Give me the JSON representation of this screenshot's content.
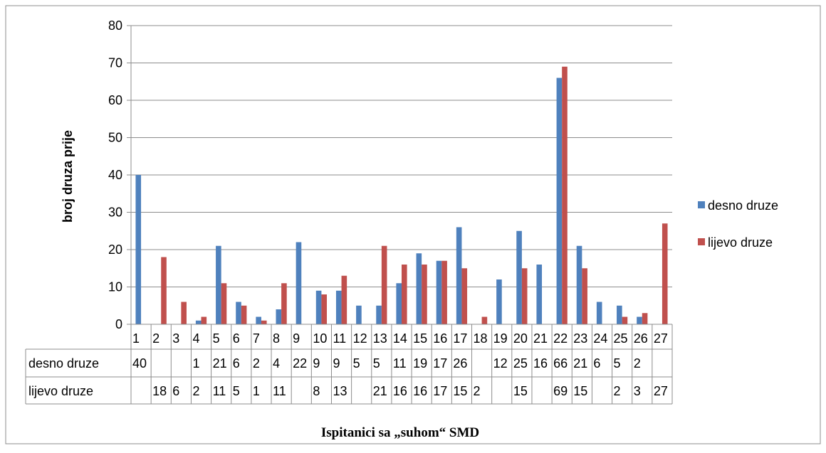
{
  "chart_data": {
    "type": "bar",
    "title": "",
    "xlabel": "Ispitanici sa „suhom“ SMD",
    "ylabel": "broj druza prije",
    "ylim": [
      0,
      80
    ],
    "yticks": [
      0,
      10,
      20,
      30,
      40,
      50,
      60,
      70,
      80
    ],
    "grid": true,
    "legend_position": "right",
    "has_data_table": true,
    "categories": [
      "1",
      "2",
      "3",
      "4",
      "5",
      "6",
      "7",
      "8",
      "9",
      "10",
      "11",
      "12",
      "13",
      "14",
      "15",
      "16",
      "17",
      "18",
      "19",
      "20",
      "21",
      "22",
      "23",
      "24",
      "25",
      "26",
      "27"
    ],
    "series": [
      {
        "name": "desno druze",
        "color": "#4f81bd",
        "values": [
          40,
          null,
          null,
          1,
          21,
          6,
          2,
          4,
          22,
          9,
          9,
          5,
          5,
          11,
          19,
          17,
          26,
          null,
          12,
          25,
          16,
          66,
          21,
          6,
          5,
          2,
          null
        ]
      },
      {
        "name": "lijevo druze",
        "color": "#c0504d",
        "values": [
          null,
          18,
          6,
          2,
          11,
          5,
          1,
          11,
          null,
          8,
          13,
          null,
          21,
          16,
          16,
          17,
          15,
          2,
          null,
          15,
          null,
          69,
          15,
          null,
          2,
          3,
          27
        ]
      }
    ]
  }
}
